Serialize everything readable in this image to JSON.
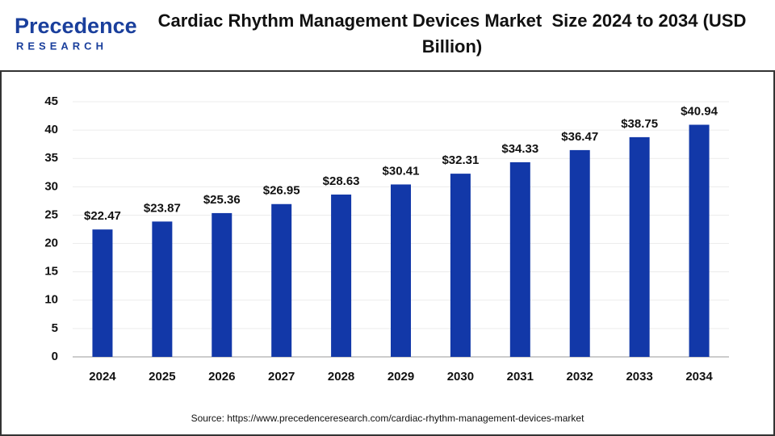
{
  "logo": {
    "name": "Precedence",
    "tagline": "RESEARCH"
  },
  "chart_data": {
    "type": "bar",
    "title": "Cardiac Rhythm Management Devices Market  Size 2024 to 2034 (USD Billion)",
    "categories": [
      "2024",
      "2025",
      "2026",
      "2027",
      "2028",
      "2029",
      "2030",
      "2031",
      "2032",
      "2033",
      "2034"
    ],
    "values": [
      22.47,
      23.87,
      25.36,
      26.95,
      28.63,
      30.41,
      32.31,
      34.33,
      36.47,
      38.75,
      40.94
    ],
    "value_labels": [
      "$22.47",
      "$23.87",
      "$25.36",
      "$26.95",
      "$28.63",
      "$30.41",
      "$32.31",
      "$34.33",
      "$36.47",
      "$38.75",
      "$40.94"
    ],
    "color": "#1238a8",
    "ylim": [
      0,
      45
    ],
    "yticks": [
      0,
      5,
      10,
      15,
      20,
      25,
      30,
      35,
      40,
      45
    ],
    "grid": true,
    "source": "Source: https://www.precedenceresearch.com/cardiac-rhythm-management-devices-market"
  }
}
